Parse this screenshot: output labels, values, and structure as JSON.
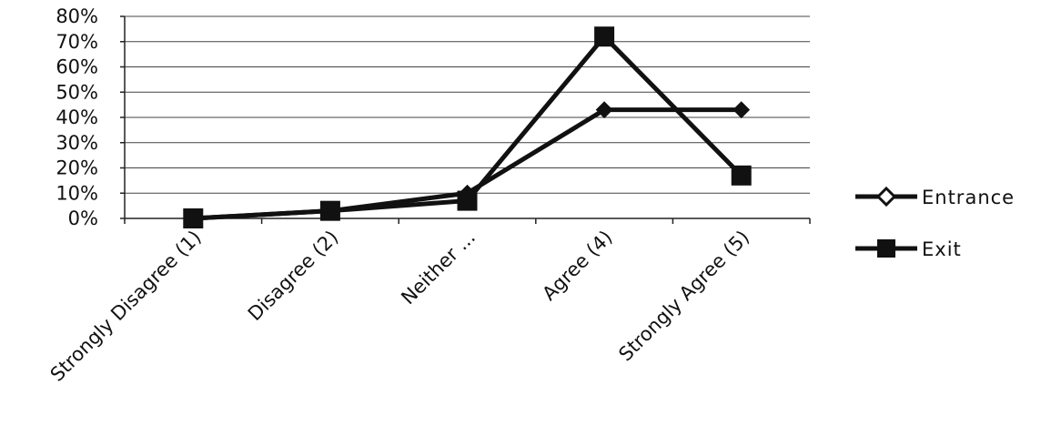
{
  "chart_data": {
    "type": "line",
    "categories": [
      "Strongly Disagree (1)",
      "Disagree (2)",
      "Neither ...",
      "Agree (4)",
      "Strongly Agree (5)"
    ],
    "series": [
      {
        "name": "Entrance",
        "values": [
          0,
          3,
          10,
          43,
          43
        ],
        "marker": "diamond",
        "color": "#111111"
      },
      {
        "name": "Exit",
        "values": [
          0,
          3,
          7,
          72,
          17
        ],
        "marker": "square",
        "color": "#111111"
      }
    ],
    "y_ticks": [
      "0%",
      "10%",
      "20%",
      "30%",
      "40%",
      "50%",
      "60%",
      "70%",
      "80%"
    ],
    "ylim": [
      0,
      80
    ],
    "y_unit": "percent",
    "grid": true,
    "legend_position": "right"
  }
}
